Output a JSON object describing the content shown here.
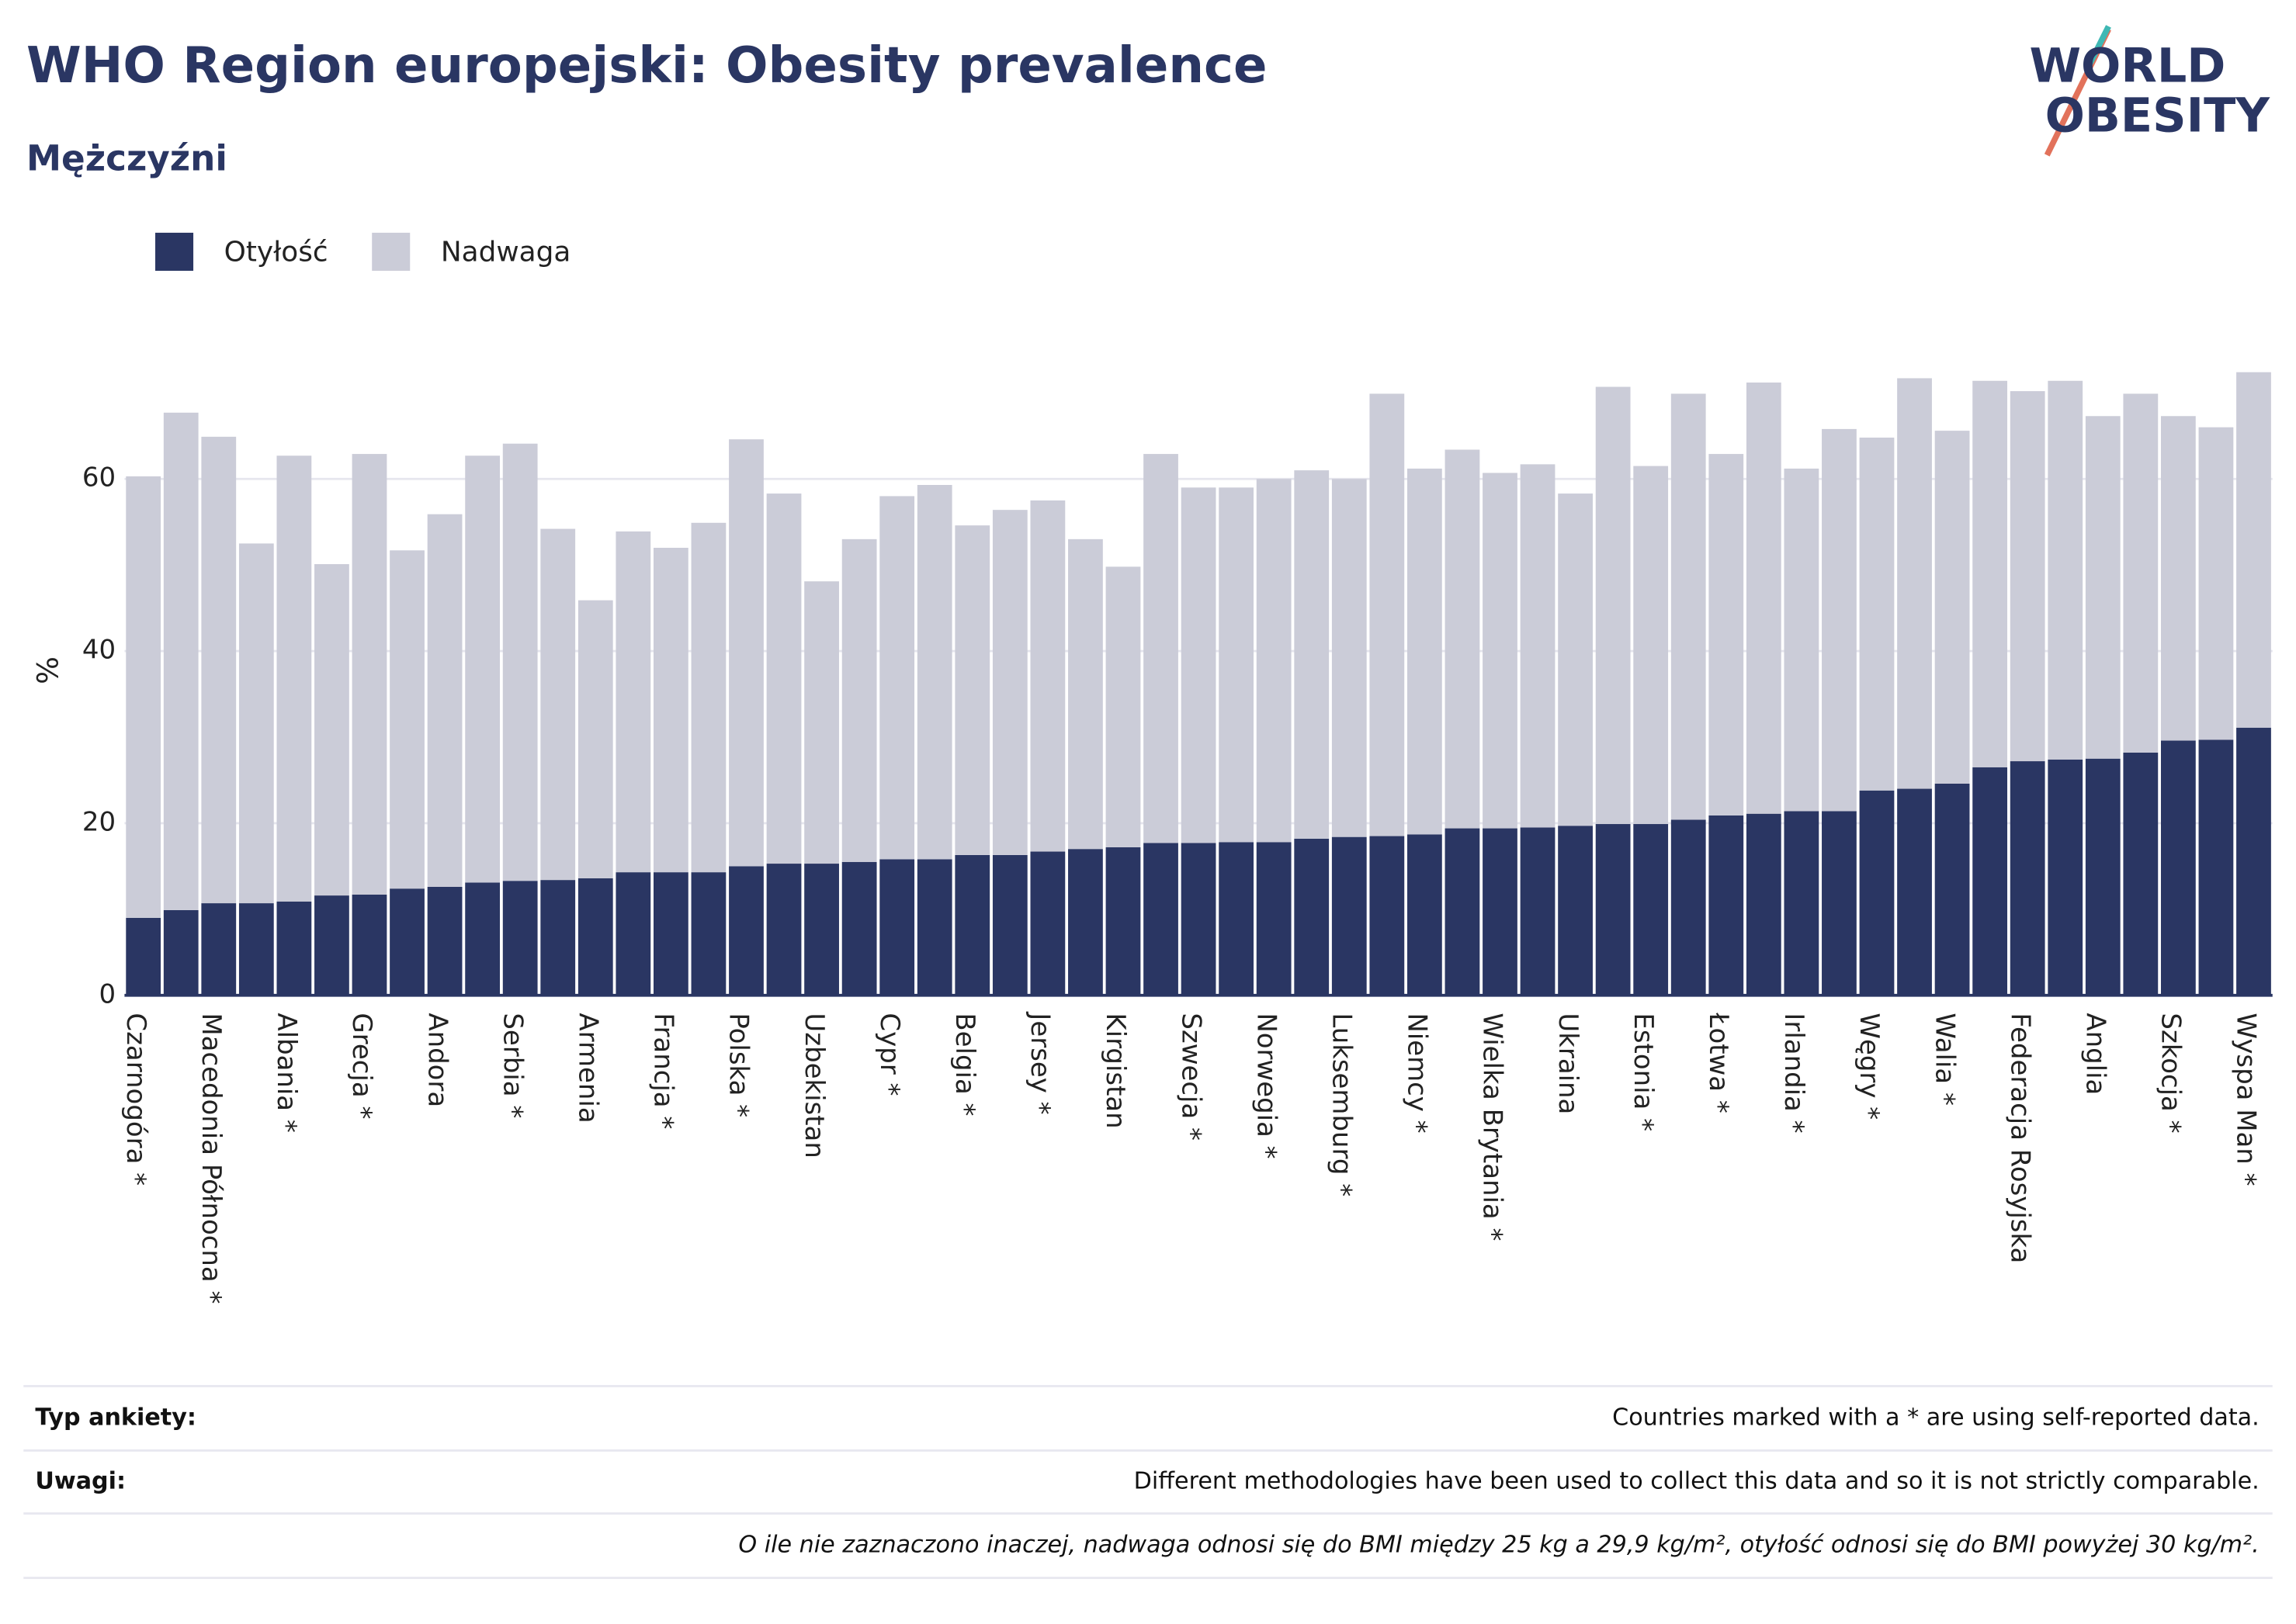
{
  "chart_data": {
    "type": "bar",
    "stacked": true,
    "title": "WHO Region europejski: Obesity prevalence",
    "subtitle": "Mężczyźni",
    "y_label": "%",
    "logo": [
      "WORLD",
      "OBESITY"
    ],
    "categories": [
      "Czarnogóra *",
      null,
      "Macedonia Północna *",
      null,
      "Albania *",
      null,
      "Grecja *",
      null,
      "Andora",
      null,
      "Serbia *",
      null,
      "Armenia",
      null,
      "Francja *",
      null,
      "Polska *",
      null,
      "Uzbekistan",
      null,
      "Cypr *",
      null,
      "Belgia *",
      null,
      "Jersey *",
      null,
      "Kirgistan",
      null,
      "Szwecja *",
      null,
      "Norwegia *",
      null,
      "Luksemburg *",
      null,
      "Niemcy *",
      null,
      "Wielka Brytania *",
      null,
      "Ukraina",
      null,
      "Estonia *",
      null,
      "Łotwa *",
      null,
      "Irlandia *",
      null,
      "Węgry *",
      null,
      "Walia *",
      null,
      "Federacja Rosyjska",
      null,
      "Anglia",
      null,
      "Szkocja *",
      null,
      "Wyspa Man *"
    ],
    "series": [
      {
        "name": "Otyłość",
        "color": "#2a3663",
        "values": [
          9.0,
          9.9,
          10.7,
          10.7,
          10.9,
          11.6,
          11.7,
          12.4,
          12.6,
          13.1,
          13.3,
          13.4,
          13.6,
          14.3,
          14.3,
          14.3,
          15.0,
          15.3,
          15.3,
          15.5,
          15.8,
          15.8,
          16.3,
          16.3,
          16.7,
          17.0,
          17.2,
          17.7,
          17.7,
          17.8,
          17.8,
          18.2,
          18.4,
          18.5,
          18.7,
          19.4,
          19.4,
          19.5,
          19.7,
          19.9,
          19.9,
          20.4,
          20.9,
          21.1,
          21.4,
          21.4,
          23.8,
          24.0,
          24.6,
          26.5,
          27.2,
          27.4,
          27.5,
          28.2,
          29.6,
          29.7,
          31.1
        ]
      },
      {
        "name": "Nadwaga",
        "color": "#cbccd8",
        "values": [
          51.3,
          57.8,
          54.2,
          41.8,
          51.8,
          38.5,
          51.2,
          39.3,
          43.3,
          49.6,
          50.8,
          40.8,
          32.3,
          39.6,
          37.7,
          40.6,
          49.6,
          43.0,
          32.8,
          37.5,
          42.2,
          43.5,
          38.3,
          40.1,
          40.8,
          36.0,
          32.6,
          45.2,
          41.3,
          41.2,
          42.2,
          42.8,
          41.6,
          51.4,
          42.5,
          44.0,
          41.3,
          42.2,
          38.6,
          50.8,
          41.6,
          49.5,
          42.0,
          50.1,
          39.8,
          44.4,
          41.0,
          47.7,
          41.0,
          44.9,
          43.0,
          44.0,
          39.8,
          41.7,
          37.7,
          36.3,
          41.3
        ]
      }
    ],
    "ylim": [
      0,
      75
    ],
    "yticks": [
      0,
      20,
      40,
      60
    ],
    "grid": true,
    "legend": "top-left",
    "notes": [
      {
        "label": "Typ ankiety:",
        "text": "Countries marked with a * are using self-reported data."
      },
      {
        "label": "Uwagi:",
        "text": "Different methodologies have been used to collect this data and so it is not strictly comparable."
      },
      {
        "text": "O ile nie zaznaczono inaczej, nadwaga odnosi się do BMI między 25 kg a 29,9 kg/m², otyłość odnosi się do BMI powyżej 30 kg/m²."
      }
    ]
  }
}
